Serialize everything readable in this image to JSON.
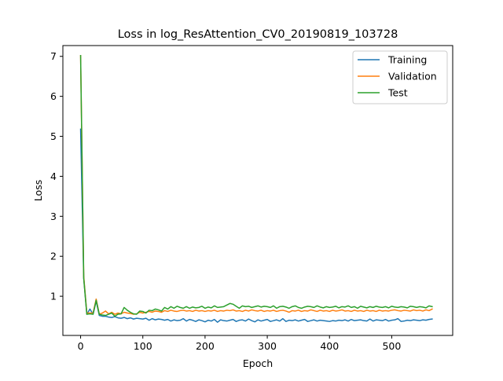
{
  "chart_data": {
    "type": "line",
    "title": "Loss in log_ResAttention_CV0_20190819_103728",
    "xlabel": "Epoch",
    "ylabel": "Loss",
    "xlim": [
      -28.5,
      598
    ],
    "ylim": [
      0.02,
      7.27
    ],
    "xticks": [
      0,
      100,
      200,
      300,
      400,
      500
    ],
    "yticks": [
      1,
      2,
      3,
      4,
      5,
      6,
      7
    ],
    "grid": false,
    "legend_position": "top-right",
    "series": [
      {
        "name": "Training",
        "color": "#1f77b4",
        "x": [
          0,
          5,
          10,
          15,
          20,
          25,
          30,
          35,
          40,
          45,
          50,
          55,
          60,
          65,
          70,
          75,
          80,
          85,
          90,
          95,
          100,
          105,
          110,
          115,
          120,
          125,
          130,
          135,
          140,
          145,
          150,
          155,
          160,
          165,
          170,
          175,
          180,
          185,
          190,
          195,
          200,
          205,
          210,
          215,
          220,
          225,
          230,
          235,
          240,
          245,
          250,
          255,
          260,
          265,
          270,
          275,
          280,
          285,
          290,
          295,
          300,
          305,
          310,
          315,
          320,
          325,
          330,
          335,
          340,
          345,
          350,
          355,
          360,
          365,
          370,
          375,
          380,
          385,
          390,
          395,
          400,
          405,
          410,
          415,
          420,
          425,
          430,
          435,
          440,
          445,
          450,
          455,
          460,
          465,
          470,
          475,
          480,
          485,
          490,
          495,
          500,
          505,
          510,
          515,
          520,
          525,
          530,
          535,
          540,
          545,
          550,
          555,
          560,
          565
        ],
        "values": [
          5.18,
          1.45,
          0.55,
          0.68,
          0.55,
          0.88,
          0.52,
          0.5,
          0.5,
          0.48,
          0.47,
          0.49,
          0.46,
          0.45,
          0.47,
          0.44,
          0.46,
          0.43,
          0.45,
          0.44,
          0.43,
          0.45,
          0.4,
          0.44,
          0.41,
          0.43,
          0.42,
          0.4,
          0.42,
          0.38,
          0.41,
          0.39,
          0.4,
          0.44,
          0.38,
          0.42,
          0.4,
          0.37,
          0.41,
          0.39,
          0.36,
          0.4,
          0.38,
          0.42,
          0.35,
          0.41,
          0.39,
          0.38,
          0.4,
          0.42,
          0.37,
          0.4,
          0.41,
          0.38,
          0.43,
          0.39,
          0.36,
          0.41,
          0.38,
          0.4,
          0.42,
          0.37,
          0.39,
          0.41,
          0.38,
          0.44,
          0.37,
          0.4,
          0.39,
          0.41,
          0.38,
          0.4,
          0.42,
          0.37,
          0.39,
          0.41,
          0.38,
          0.4,
          0.39,
          0.38,
          0.37,
          0.39,
          0.38,
          0.4,
          0.39,
          0.41,
          0.38,
          0.42,
          0.39,
          0.4,
          0.41,
          0.39,
          0.38,
          0.43,
          0.38,
          0.41,
          0.4,
          0.39,
          0.42,
          0.38,
          0.4,
          0.41,
          0.44,
          0.37,
          0.38,
          0.4,
          0.39,
          0.41,
          0.4,
          0.39,
          0.41,
          0.4,
          0.42,
          0.43
        ]
      },
      {
        "name": "Validation",
        "color": "#ff7f0e",
        "x": [
          0,
          5,
          10,
          15,
          20,
          25,
          30,
          35,
          40,
          45,
          50,
          55,
          60,
          65,
          70,
          75,
          80,
          85,
          90,
          95,
          100,
          105,
          110,
          115,
          120,
          125,
          130,
          135,
          140,
          145,
          150,
          155,
          160,
          165,
          170,
          175,
          180,
          185,
          190,
          195,
          200,
          205,
          210,
          215,
          220,
          225,
          230,
          235,
          240,
          245,
          250,
          255,
          260,
          265,
          270,
          275,
          280,
          285,
          290,
          295,
          300,
          305,
          310,
          315,
          320,
          325,
          330,
          335,
          340,
          345,
          350,
          355,
          360,
          365,
          370,
          375,
          380,
          385,
          390,
          395,
          400,
          405,
          410,
          415,
          420,
          425,
          430,
          435,
          440,
          445,
          450,
          455,
          460,
          465,
          470,
          475,
          480,
          485,
          490,
          495,
          500,
          505,
          510,
          515,
          520,
          525,
          530,
          535,
          540,
          545,
          550,
          555,
          560,
          565
        ],
        "values": [
          7.02,
          1.5,
          0.58,
          0.58,
          0.58,
          0.93,
          0.55,
          0.58,
          0.63,
          0.56,
          0.6,
          0.55,
          0.58,
          0.56,
          0.6,
          0.58,
          0.57,
          0.55,
          0.56,
          0.6,
          0.58,
          0.6,
          0.62,
          0.6,
          0.63,
          0.62,
          0.6,
          0.64,
          0.62,
          0.65,
          0.63,
          0.62,
          0.64,
          0.65,
          0.63,
          0.64,
          0.62,
          0.65,
          0.63,
          0.64,
          0.62,
          0.64,
          0.63,
          0.65,
          0.62,
          0.64,
          0.63,
          0.65,
          0.64,
          0.66,
          0.63,
          0.64,
          0.62,
          0.65,
          0.63,
          0.66,
          0.64,
          0.63,
          0.65,
          0.62,
          0.64,
          0.63,
          0.65,
          0.62,
          0.64,
          0.65,
          0.63,
          0.6,
          0.64,
          0.63,
          0.65,
          0.62,
          0.64,
          0.63,
          0.66,
          0.64,
          0.62,
          0.65,
          0.63,
          0.64,
          0.62,
          0.65,
          0.63,
          0.64,
          0.66,
          0.63,
          0.64,
          0.62,
          0.65,
          0.63,
          0.64,
          0.62,
          0.65,
          0.63,
          0.64,
          0.62,
          0.65,
          0.63,
          0.64,
          0.63,
          0.65,
          0.66,
          0.64,
          0.63,
          0.65,
          0.64,
          0.63,
          0.66,
          0.64,
          0.65,
          0.63,
          0.66,
          0.64,
          0.68
        ]
      },
      {
        "name": "Test",
        "color": "#2ca02c",
        "x": [
          0,
          5,
          10,
          15,
          20,
          25,
          30,
          35,
          40,
          45,
          50,
          55,
          60,
          65,
          70,
          75,
          80,
          85,
          90,
          95,
          100,
          105,
          110,
          115,
          120,
          125,
          130,
          135,
          140,
          145,
          150,
          155,
          160,
          165,
          170,
          175,
          180,
          185,
          190,
          195,
          200,
          205,
          210,
          215,
          220,
          225,
          230,
          235,
          240,
          245,
          250,
          255,
          260,
          265,
          270,
          275,
          280,
          285,
          290,
          295,
          300,
          305,
          310,
          315,
          320,
          325,
          330,
          335,
          340,
          345,
          350,
          355,
          360,
          365,
          370,
          375,
          380,
          385,
          390,
          395,
          400,
          405,
          410,
          415,
          420,
          425,
          430,
          435,
          440,
          445,
          450,
          455,
          460,
          465,
          470,
          475,
          480,
          485,
          490,
          495,
          500,
          505,
          510,
          515,
          520,
          525,
          530,
          535,
          540,
          545,
          550,
          555,
          560,
          565
        ],
        "values": [
          7.02,
          1.45,
          0.55,
          0.56,
          0.55,
          0.9,
          0.55,
          0.53,
          0.52,
          0.55,
          0.58,
          0.5,
          0.55,
          0.56,
          0.72,
          0.65,
          0.6,
          0.56,
          0.55,
          0.63,
          0.62,
          0.58,
          0.65,
          0.64,
          0.68,
          0.66,
          0.63,
          0.72,
          0.68,
          0.74,
          0.7,
          0.75,
          0.72,
          0.7,
          0.74,
          0.7,
          0.73,
          0.71,
          0.72,
          0.75,
          0.7,
          0.73,
          0.71,
          0.76,
          0.72,
          0.73,
          0.74,
          0.78,
          0.82,
          0.8,
          0.75,
          0.7,
          0.76,
          0.74,
          0.75,
          0.72,
          0.74,
          0.76,
          0.73,
          0.75,
          0.74,
          0.72,
          0.76,
          0.7,
          0.74,
          0.75,
          0.73,
          0.7,
          0.74,
          0.76,
          0.72,
          0.7,
          0.73,
          0.75,
          0.74,
          0.72,
          0.76,
          0.73,
          0.71,
          0.74,
          0.72,
          0.73,
          0.75,
          0.71,
          0.74,
          0.73,
          0.76,
          0.72,
          0.74,
          0.7,
          0.75,
          0.73,
          0.71,
          0.74,
          0.72,
          0.75,
          0.73,
          0.72,
          0.74,
          0.71,
          0.75,
          0.73,
          0.72,
          0.74,
          0.73,
          0.71,
          0.75,
          0.74,
          0.72,
          0.74,
          0.73,
          0.71,
          0.76,
          0.74
        ]
      }
    ]
  }
}
